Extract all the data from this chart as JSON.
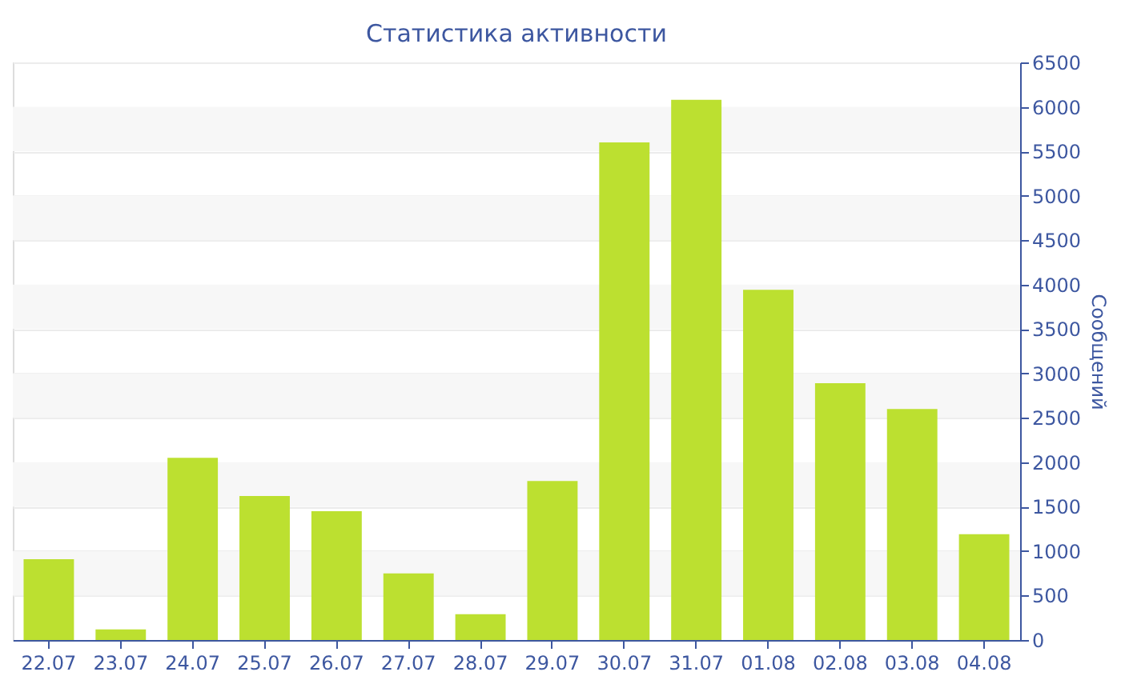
{
  "chart_data": {
    "type": "bar",
    "title": "Статистика активности",
    "ylabel": "Сообщений",
    "categories": [
      "22.07",
      "23.07",
      "24.07",
      "25.07",
      "26.07",
      "27.07",
      "28.07",
      "29.07",
      "30.07",
      "31.07",
      "01.08",
      "02.08",
      "03.08",
      "04.08"
    ],
    "values": [
      910,
      120,
      2050,
      1620,
      1450,
      750,
      290,
      1790,
      5600,
      6080,
      3940,
      2890,
      2600,
      1190
    ],
    "color": "#bce030",
    "ylim": [
      0,
      6500
    ],
    "yticks": [
      0,
      500,
      1000,
      1500,
      2000,
      2500,
      3000,
      3500,
      4000,
      4500,
      5000,
      5500,
      6000,
      6500
    ],
    "grid": "y"
  }
}
